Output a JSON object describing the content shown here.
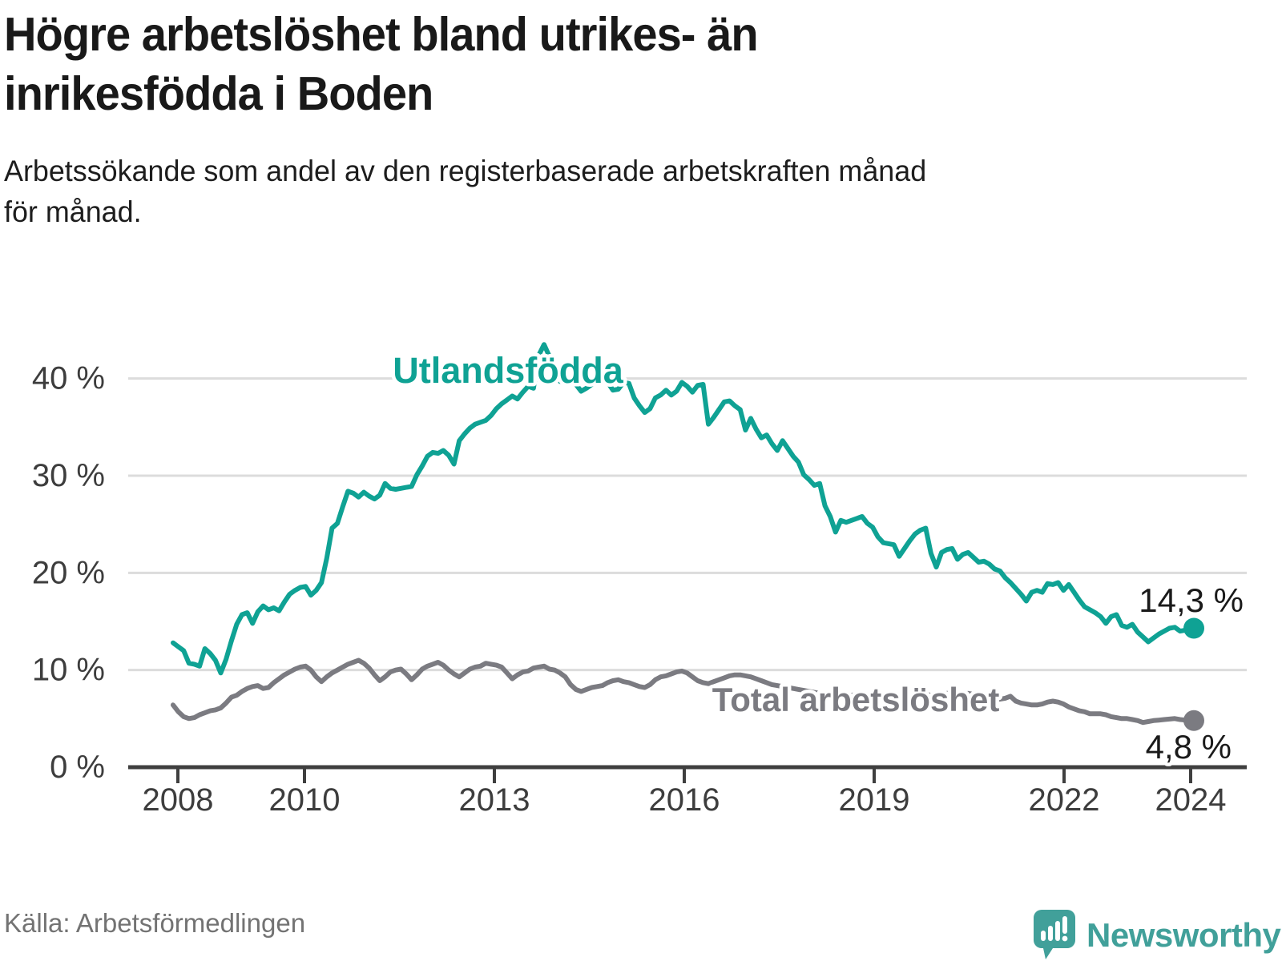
{
  "title": {
    "line1": "Högre arbetslöshet bland utrikes- än",
    "line2": "inrikesfödda i Boden"
  },
  "subtitle": {
    "line1": "Arbetssökande som andel av den registerbaserade arbetskraften månad",
    "line2": "för månad."
  },
  "source": "Källa: Arbetsförmedlingen",
  "logo": {
    "text": "Newsworthy"
  },
  "colors": {
    "foreign_born_line": "#0fa294",
    "total_line": "#7b7b81",
    "grid": "#dcdcdc",
    "axis": "#3f3f3f",
    "tick_label": "#3d3d3d",
    "value_label": "#1a1a1a",
    "logo_teal": "#41a09a",
    "background": "#ffffff"
  },
  "chart_data": {
    "type": "line",
    "x_start_year": 2008,
    "x_end_year": 2024,
    "points_per_year": 12,
    "x_tick_years": [
      2008,
      2010,
      2013,
      2016,
      2019,
      2022,
      2024
    ],
    "x_tick_labels": [
      "2008",
      "2010",
      "2013",
      "2016",
      "2019",
      "2022",
      "2024"
    ],
    "y_ticks": [
      {
        "value": 0,
        "label": "0 %"
      },
      {
        "value": 10,
        "label": "10 %"
      },
      {
        "value": 20,
        "label": "20 %"
      },
      {
        "value": 30,
        "label": "30 %"
      },
      {
        "value": 40,
        "label": "40 %"
      }
    ],
    "ylim": [
      0,
      44.3
    ],
    "grid": true,
    "series": [
      {
        "name": "Utlandsfödda",
        "end_label": "14,3 %",
        "last_value": 14.3,
        "values": [
          12.8,
          12.4,
          12.0,
          10.7,
          10.6,
          10.4,
          12.2,
          11.7,
          11.0,
          9.7,
          11.1,
          13.0,
          14.7,
          15.7,
          15.9,
          14.8,
          16.0,
          16.6,
          16.2,
          16.4,
          16.1,
          17.0,
          17.8,
          18.2,
          18.5,
          18.6,
          17.7,
          18.2,
          19.0,
          21.5,
          24.6,
          25.1,
          26.8,
          28.4,
          28.2,
          27.8,
          28.3,
          27.9,
          27.6,
          28.0,
          29.2,
          28.7,
          28.6,
          28.7,
          28.8,
          28.9,
          30.1,
          31.0,
          32.0,
          32.4,
          32.3,
          32.6,
          32.1,
          31.2,
          33.6,
          34.3,
          34.9,
          35.3,
          35.5,
          35.7,
          36.2,
          36.9,
          37.4,
          37.8,
          38.2,
          37.9,
          38.6,
          39.2,
          39.0,
          42.4,
          43.5,
          42.3,
          41.1,
          39.7,
          40.1,
          39.8,
          39.4,
          38.7,
          39.0,
          39.4,
          40.2,
          40.0,
          39.6,
          38.8,
          38.9,
          39.6,
          39.5,
          38.0,
          37.2,
          36.5,
          36.9,
          38.0,
          38.3,
          38.8,
          38.3,
          38.7,
          39.6,
          39.2,
          38.6,
          39.3,
          39.4,
          35.3,
          36.0,
          36.8,
          37.6,
          37.7,
          37.2,
          36.8,
          34.7,
          35.9,
          34.8,
          33.9,
          34.2,
          33.3,
          32.6,
          33.6,
          32.8,
          32.0,
          31.4,
          30.1,
          29.6,
          29.0,
          29.2,
          26.9,
          25.8,
          24.2,
          25.4,
          25.2,
          25.4,
          25.6,
          25.8,
          25.1,
          24.7,
          23.7,
          23.1,
          23.0,
          22.9,
          21.7,
          22.5,
          23.3,
          24.0,
          24.4,
          24.6,
          22.0,
          20.6,
          22.1,
          22.4,
          22.5,
          21.4,
          21.9,
          22.1,
          21.6,
          21.1,
          21.2,
          20.9,
          20.4,
          20.2,
          19.5,
          19.0,
          18.4,
          17.8,
          17.1,
          18.0,
          18.2,
          18.0,
          18.9,
          18.8,
          19.0,
          18.2,
          18.8,
          18.0,
          17.2,
          16.5,
          16.2,
          15.9,
          15.5,
          14.8,
          15.5,
          15.7,
          14.6,
          14.4,
          14.7,
          13.9,
          13.4,
          12.9,
          13.3,
          13.7,
          14.0,
          14.3,
          14.4,
          14.0,
          14.1,
          14.3
        ]
      },
      {
        "name": "Total arbetslöshet",
        "end_label": "4,8 %",
        "last_value": 4.8,
        "values": [
          6.4,
          5.7,
          5.2,
          5.0,
          5.1,
          5.4,
          5.6,
          5.8,
          5.9,
          6.1,
          6.6,
          7.2,
          7.4,
          7.8,
          8.1,
          8.3,
          8.4,
          8.1,
          8.2,
          8.7,
          9.1,
          9.5,
          9.8,
          10.1,
          10.3,
          10.4,
          10.0,
          9.3,
          8.8,
          9.3,
          9.7,
          10.0,
          10.3,
          10.6,
          10.8,
          11.0,
          10.7,
          10.2,
          9.5,
          8.9,
          9.3,
          9.8,
          10.0,
          10.1,
          9.6,
          9.0,
          9.5,
          10.1,
          10.4,
          10.6,
          10.8,
          10.5,
          10.0,
          9.6,
          9.3,
          9.7,
          10.1,
          10.3,
          10.4,
          10.7,
          10.6,
          10.5,
          10.3,
          9.7,
          9.1,
          9.5,
          9.8,
          9.9,
          10.2,
          10.3,
          10.4,
          10.1,
          10.0,
          9.7,
          9.3,
          8.5,
          8.0,
          7.8,
          8.0,
          8.2,
          8.3,
          8.4,
          8.7,
          8.9,
          9.0,
          8.8,
          8.7,
          8.5,
          8.3,
          8.2,
          8.5,
          9.0,
          9.3,
          9.4,
          9.6,
          9.8,
          9.9,
          9.7,
          9.3,
          8.9,
          8.7,
          8.6,
          8.8,
          9.0,
          9.2,
          9.4,
          9.5,
          9.5,
          9.4,
          9.3,
          9.1,
          8.9,
          8.7,
          8.5,
          8.4,
          8.3,
          8.2,
          8.1,
          8.0,
          7.9,
          7.8,
          7.7,
          7.6,
          7.4,
          7.2,
          7.1,
          7.2,
          7.3,
          7.4,
          7.5,
          7.5,
          7.4,
          7.3,
          7.2,
          7.1,
          7.0,
          6.9,
          6.8,
          7.0,
          7.1,
          7.3,
          7.4,
          7.5,
          7.4,
          7.3,
          7.4,
          7.6,
          7.7,
          7.6,
          7.5,
          7.6,
          7.5,
          7.4,
          7.3,
          7.2,
          7.1,
          7.0,
          7.1,
          7.3,
          6.8,
          6.6,
          6.5,
          6.4,
          6.4,
          6.5,
          6.7,
          6.8,
          6.7,
          6.5,
          6.2,
          6.0,
          5.8,
          5.7,
          5.5,
          5.5,
          5.5,
          5.4,
          5.2,
          5.1,
          5.0,
          5.0,
          4.9,
          4.8,
          4.6,
          4.7,
          4.8,
          4.85,
          4.9,
          4.95,
          5.0,
          4.9,
          4.85,
          4.8
        ]
      }
    ],
    "legend_position": "inline-labels"
  }
}
